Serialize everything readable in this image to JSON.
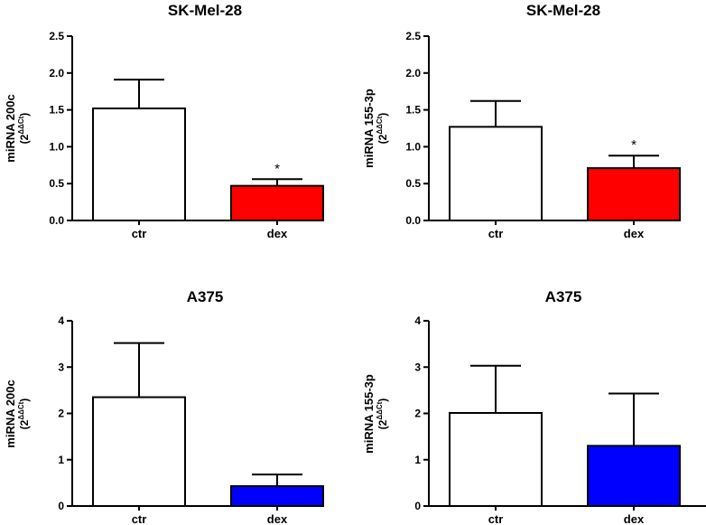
{
  "chart_data": [
    {
      "type": "bar",
      "title": "SK-Mel-28",
      "ylabel": "miRNA 200c",
      "ylabel_unit": "(2",
      "ylabel_exp": "ΔΔCt",
      "ylabel_close": ")",
      "categories": [
        "ctr",
        "dex"
      ],
      "values": [
        1.52,
        0.47
      ],
      "errors": [
        0.39,
        0.09
      ],
      "colors": [
        "#ffffff",
        "#ff0000"
      ],
      "significance": [
        "",
        "*"
      ],
      "ylim": [
        0,
        2.5
      ],
      "yticks": [
        "0.0",
        "0.5",
        "1.0",
        "1.5",
        "2.0",
        "2.5"
      ]
    },
    {
      "type": "bar",
      "title": "SK-Mel-28",
      "ylabel": "miRNA 155-3p",
      "ylabel_unit": "(2",
      "ylabel_exp": "ΔΔCt",
      "ylabel_close": ")",
      "categories": [
        "ctr",
        "dex"
      ],
      "values": [
        1.27,
        0.71
      ],
      "errors": [
        0.35,
        0.17
      ],
      "colors": [
        "#ffffff",
        "#ff0000"
      ],
      "significance": [
        "",
        "*"
      ],
      "ylim": [
        0,
        2.5
      ],
      "yticks": [
        "0.0",
        "0.5",
        "1.0",
        "1.5",
        "2.0",
        "2.5"
      ]
    },
    {
      "type": "bar",
      "title": "A375",
      "ylabel": "miRNA 200c",
      "ylabel_unit": "(2",
      "ylabel_exp": "ΔΔCt",
      "ylabel_close": ")",
      "categories": [
        "ctr",
        "dex"
      ],
      "values": [
        2.35,
        0.43
      ],
      "errors": [
        1.17,
        0.25
      ],
      "colors": [
        "#ffffff",
        "#0000ff"
      ],
      "significance": [
        "",
        ""
      ],
      "ylim": [
        0,
        4
      ],
      "yticks": [
        "0",
        "1",
        "2",
        "3",
        "4"
      ]
    },
    {
      "type": "bar",
      "title": "A375",
      "ylabel": "miRNA 155-3p",
      "ylabel_unit": "(2",
      "ylabel_exp": "ΔΔCt",
      "ylabel_close": ")",
      "categories": [
        "ctr",
        "dex"
      ],
      "values": [
        2.01,
        1.3
      ],
      "errors": [
        1.02,
        1.13
      ],
      "colors": [
        "#ffffff",
        "#0000ff"
      ],
      "significance": [
        "",
        ""
      ],
      "ylim": [
        0,
        4
      ],
      "yticks": [
        "0",
        "1",
        "2",
        "3",
        "4"
      ]
    }
  ]
}
